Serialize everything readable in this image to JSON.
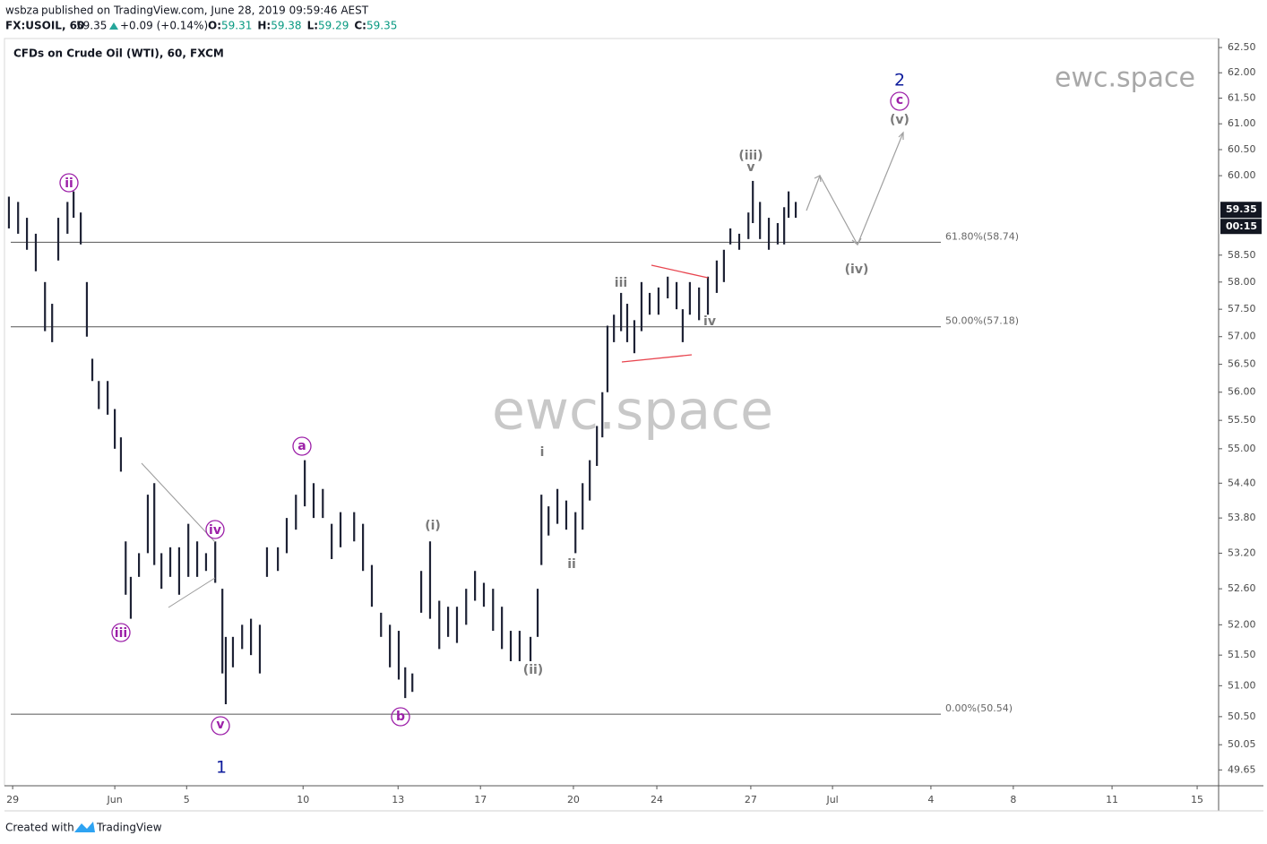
{
  "header": {
    "publisher": "wsbza",
    "published": "published on TradingView.com, June 28, 2019 09:59:46 AEST",
    "symbol": "FX:USOIL, 60",
    "price": "59.35",
    "change": "+0.09 (+0.14%)",
    "quote": [
      {
        "key": "O:",
        "value": "59.31"
      },
      {
        "key": "H:",
        "value": "59.38"
      },
      {
        "key": "L:",
        "value": "59.29"
      },
      {
        "key": "C:",
        "value": "59.35"
      }
    ]
  },
  "footer": {
    "created": "Created with",
    "brand": "TradingView"
  },
  "watermark": "ewc.space",
  "annotations": [
    "ii",
    "iii",
    "iv",
    "v",
    "1",
    "a",
    "b",
    "(i)",
    "(ii)",
    "i",
    "ii",
    "iii",
    "iv",
    "v",
    "(iii)",
    "(iv)",
    "(v)",
    "c",
    "2"
  ],
  "chart_data": {
    "type": "ohlc",
    "title": "CFDs on Crude Oil (WTI), 60, FXCM",
    "color": "#1e2235",
    "log_scale": true,
    "x": [
      -0.11,
      0.16,
      0.42,
      0.68,
      0.95,
      1.16,
      1.34,
      1.61,
      1.79,
      2.0,
      2.18,
      2.34,
      2.53,
      2.79,
      3.0,
      3.18,
      3.32,
      3.47,
      3.71,
      3.97,
      4.16,
      4.37,
      4.63,
      4.89,
      5.16,
      5.42,
      5.68,
      5.95,
      6.16,
      6.26,
      6.47,
      6.74,
      7.0,
      7.26,
      7.47,
      7.79,
      8.05,
      8.32,
      8.58,
      8.84,
      9.11,
      9.37,
      9.63,
      10.03,
      10.29,
      10.55,
      10.82,
      11.08,
      11.34,
      11.53,
      11.74,
      12.0,
      12.26,
      12.53,
      12.79,
      13.05,
      13.32,
      13.58,
      13.84,
      14.11,
      14.37,
      14.63,
      14.89,
      15.21,
      15.42,
      15.53,
      15.74,
      16.0,
      16.26,
      16.53,
      16.74,
      16.95,
      17.16,
      17.32,
      17.47,
      17.66,
      17.87,
      18.05,
      18.26,
      18.47,
      18.71,
      18.97,
      19.24,
      19.5,
      19.68,
      19.89,
      20.16,
      20.42,
      20.68,
      20.89,
      21.08,
      21.34,
      21.61,
      21.74,
      21.95,
      22.21,
      22.47,
      22.66,
      22.79,
      23.0
    ],
    "high": [
      59.6,
      59.5,
      59.2,
      58.9,
      58.0,
      57.6,
      59.2,
      59.5,
      59.7,
      59.3,
      58.0,
      56.6,
      56.2,
      56.2,
      55.7,
      55.2,
      53.4,
      52.8,
      53.2,
      54.2,
      54.4,
      53.2,
      53.3,
      53.3,
      53.7,
      53.4,
      53.2,
      53.4,
      52.6,
      51.8,
      51.8,
      52.0,
      52.1,
      52.0,
      53.3,
      53.3,
      53.8,
      54.2,
      54.8,
      54.4,
      54.3,
      53.7,
      53.9,
      53.9,
      53.7,
      53.0,
      52.2,
      52.0,
      51.9,
      51.3,
      51.2,
      52.9,
      53.4,
      52.4,
      52.3,
      52.3,
      52.6,
      52.9,
      52.7,
      52.6,
      52.3,
      51.9,
      51.9,
      51.8,
      52.6,
      54.2,
      54.0,
      54.3,
      54.1,
      53.9,
      54.4,
      54.8,
      55.4,
      56.0,
      57.2,
      57.4,
      57.8,
      57.6,
      57.3,
      58.0,
      57.8,
      57.9,
      58.1,
      58.0,
      57.5,
      58.0,
      57.9,
      58.1,
      58.4,
      58.6,
      59.0,
      58.9,
      59.3,
      59.9,
      59.5,
      59.2,
      59.1,
      59.4,
      59.7,
      59.5
    ],
    "low": [
      59.0,
      58.9,
      58.6,
      58.2,
      57.1,
      56.9,
      58.4,
      58.9,
      59.2,
      58.7,
      57.0,
      56.2,
      55.7,
      55.6,
      55.0,
      54.6,
      52.5,
      52.1,
      52.8,
      53.2,
      53.0,
      52.6,
      52.8,
      52.5,
      52.8,
      52.8,
      52.9,
      52.7,
      51.2,
      50.7,
      51.3,
      51.6,
      51.5,
      51.2,
      52.8,
      52.9,
      53.2,
      53.6,
      54.0,
      53.8,
      53.8,
      53.1,
      53.3,
      53.4,
      52.9,
      52.3,
      51.8,
      51.3,
      51.1,
      50.8,
      50.9,
      52.2,
      52.1,
      51.6,
      51.8,
      51.7,
      52.0,
      52.4,
      52.3,
      51.9,
      51.6,
      51.4,
      51.4,
      51.4,
      51.8,
      53.0,
      53.5,
      53.7,
      53.6,
      53.2,
      53.6,
      54.1,
      54.7,
      55.2,
      56.0,
      56.9,
      57.1,
      56.9,
      56.7,
      57.1,
      57.4,
      57.4,
      57.7,
      57.5,
      56.9,
      57.4,
      57.3,
      57.4,
      57.8,
      58.0,
      58.7,
      58.6,
      58.8,
      59.1,
      58.8,
      58.6,
      58.7,
      58.7,
      59.2,
      59.2
    ],
    "levels": [
      {
        "value": 58.74,
        "label": "61.80%(58.74)"
      },
      {
        "value": 57.18,
        "label": "50.00%(57.18)"
      },
      {
        "value": 50.54,
        "label": "0.00%(50.54)"
      }
    ],
    "last_price": 59.35,
    "countdown": "00:15",
    "xlim": [
      -0.24,
      35.42
    ],
    "ylim": [
      49.4,
      62.68
    ],
    "xticks": [
      {
        "value": 0,
        "label": "29"
      },
      {
        "value": 3.0,
        "label": "Jun"
      },
      {
        "value": 5.11,
        "label": "5"
      },
      {
        "value": 8.53,
        "label": "10"
      },
      {
        "value": 11.32,
        "label": "13"
      },
      {
        "value": 13.74,
        "label": "17"
      },
      {
        "value": 16.47,
        "label": "20"
      },
      {
        "value": 18.92,
        "label": "24"
      },
      {
        "value": 21.68,
        "label": "27"
      },
      {
        "value": 24.08,
        "label": "Jul"
      },
      {
        "value": 26.97,
        "label": "4"
      },
      {
        "value": 29.39,
        "label": "8"
      },
      {
        "value": 32.29,
        "label": "11"
      },
      {
        "value": 34.79,
        "label": "15"
      }
    ],
    "yticks": [
      {
        "value": 62.5,
        "label": "62.50"
      },
      {
        "value": 62,
        "label": "62.00"
      },
      {
        "value": 61.5,
        "label": "61.50"
      },
      {
        "value": 61,
        "label": "61.00"
      },
      {
        "value": 60.5,
        "label": "60.50"
      },
      {
        "value": 60,
        "label": "60.00"
      },
      {
        "value": 58.5,
        "label": "58.50"
      },
      {
        "value": 58,
        "label": "58.00"
      },
      {
        "value": 57.5,
        "label": "57.50"
      },
      {
        "value": 57,
        "label": "57.00"
      },
      {
        "value": 56.5,
        "label": "56.50"
      },
      {
        "value": 56,
        "label": "56.00"
      },
      {
        "value": 55.5,
        "label": "55.50"
      },
      {
        "value": 55,
        "label": "55.00"
      },
      {
        "value": 54.4,
        "label": "54.40"
      },
      {
        "value": 53.8,
        "label": "53.80"
      },
      {
        "value": 53.2,
        "label": "53.20"
      },
      {
        "value": 52.6,
        "label": "52.60"
      },
      {
        "value": 52,
        "label": "52.00"
      },
      {
        "value": 51.5,
        "label": "51.50"
      },
      {
        "value": 51,
        "label": "51.00"
      },
      {
        "value": 50.5,
        "label": "50.50"
      },
      {
        "value": 50.05,
        "label": "50.05"
      },
      {
        "value": 49.65,
        "label": "49.65"
      }
    ]
  }
}
